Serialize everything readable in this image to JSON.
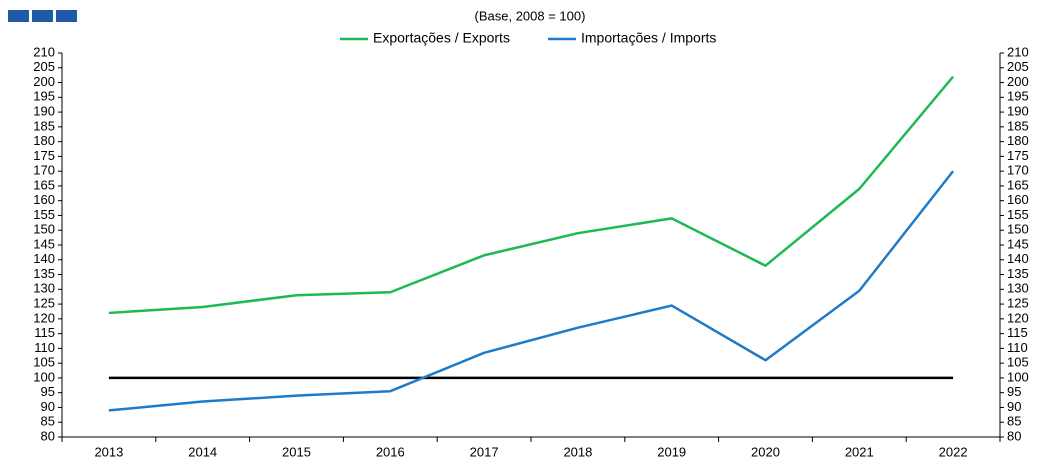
{
  "chart_data": {
    "type": "line",
    "subtitle": "(Base, 2008 = 100)",
    "categories": [
      "2013",
      "2014",
      "2015",
      "2016",
      "2017",
      "2018",
      "2019",
      "2020",
      "2021",
      "2022"
    ],
    "series": [
      {
        "name": "Exportações / Exports",
        "color": "#1db954",
        "values": [
          122,
          124,
          128,
          129,
          141.5,
          149,
          154,
          138,
          164,
          202
        ]
      },
      {
        "name": "Importações / Imports",
        "color": "#1f7bc8",
        "values": [
          89,
          92,
          94,
          95.5,
          108.5,
          117,
          124.5,
          106,
          129.5,
          170
        ]
      }
    ],
    "reference_line": 100,
    "reference_color": "#000000",
    "ylim": [
      80,
      210
    ],
    "yticks": [
      80,
      85,
      90,
      95,
      100,
      105,
      110,
      115,
      120,
      125,
      130,
      135,
      140,
      145,
      150,
      155,
      160,
      165,
      170,
      175,
      180,
      185,
      190,
      195,
      200,
      205,
      210
    ],
    "y2lim": [
      80,
      210
    ],
    "y2ticks": [
      80,
      85,
      90,
      95,
      100,
      105,
      110,
      115,
      120,
      125,
      130,
      135,
      140,
      145,
      150,
      155,
      160,
      165,
      170,
      175,
      180,
      185,
      190,
      195,
      200,
      205,
      210
    ],
    "legend": "top"
  }
}
